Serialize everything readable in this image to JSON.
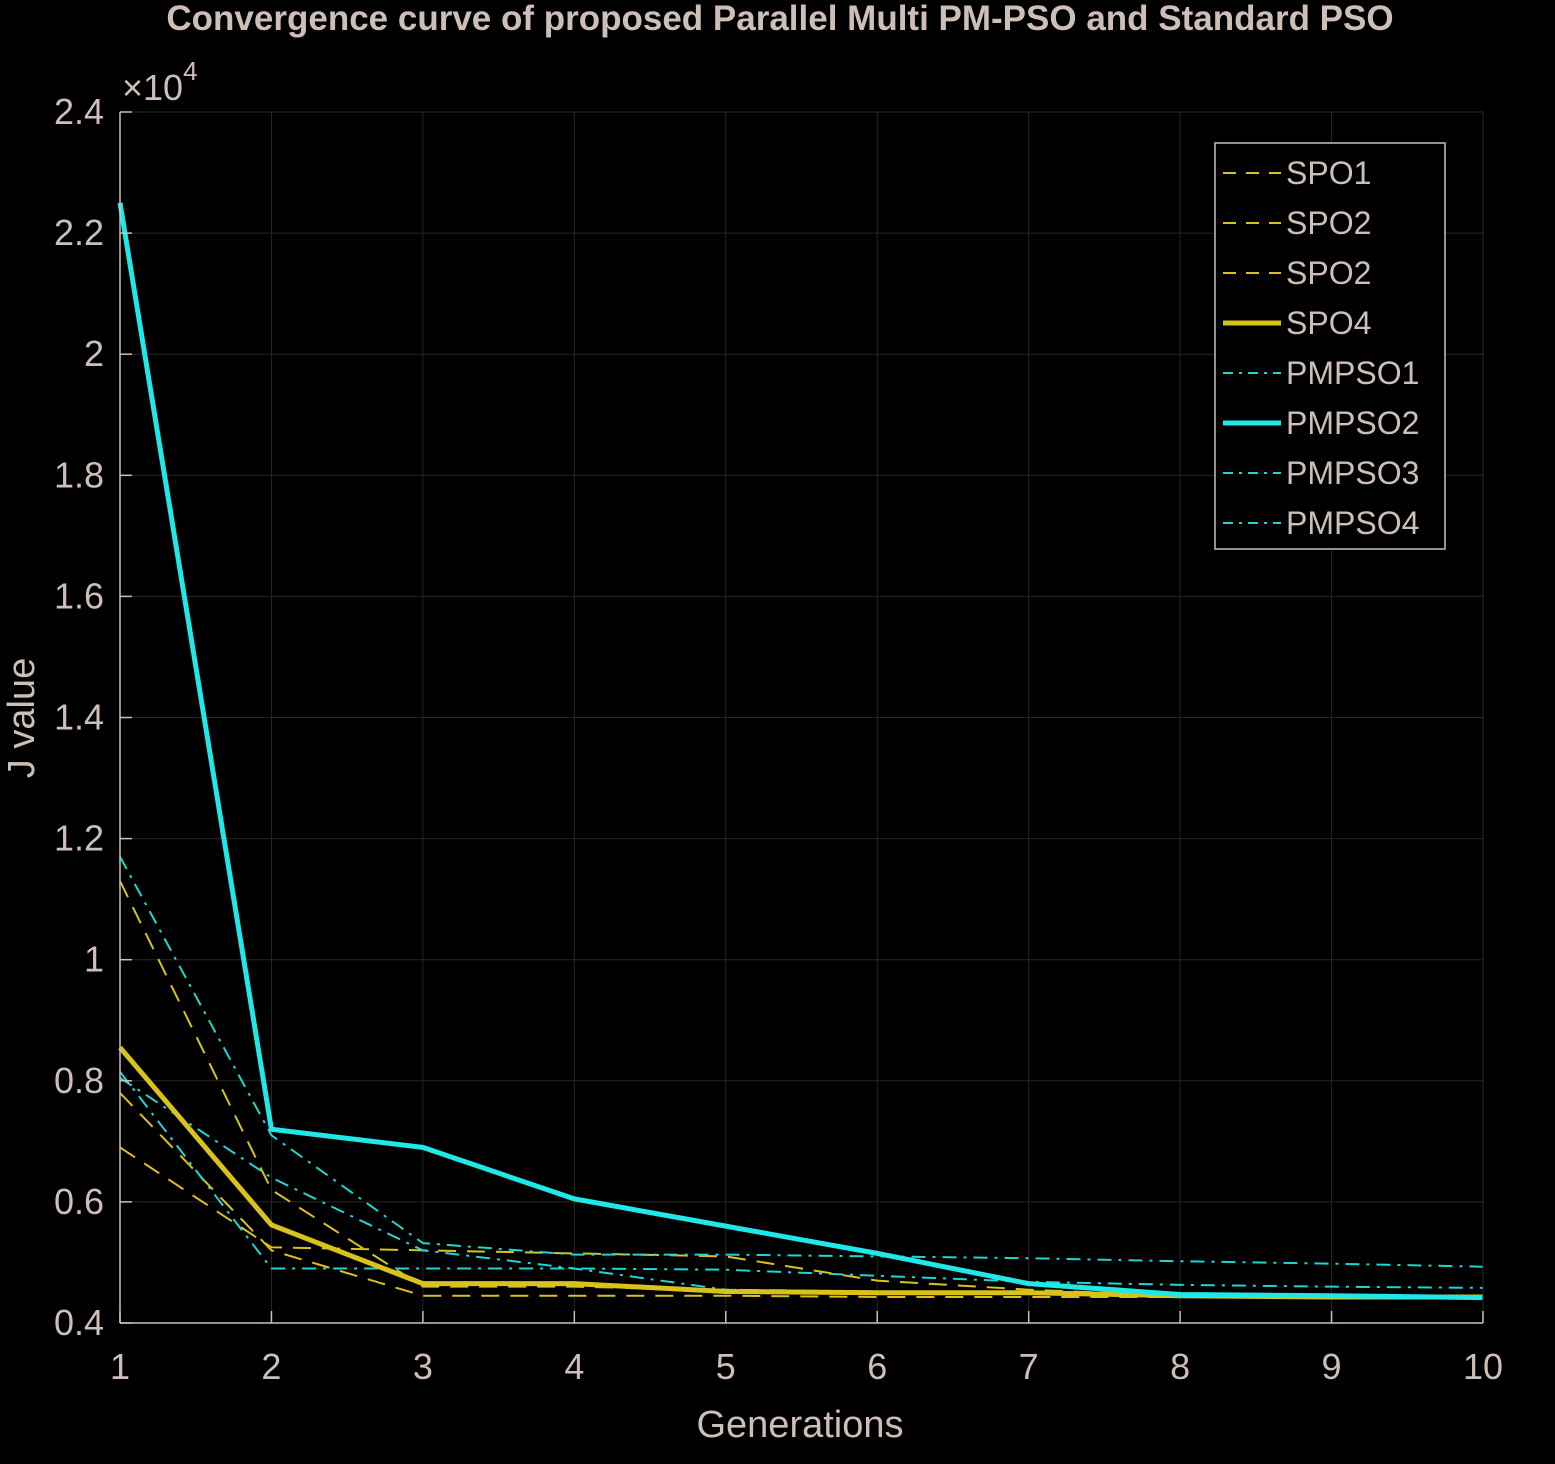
{
  "chart_data": {
    "type": "line",
    "title": "Convergence curve of proposed Parallel Multi PM-PSO and Standard PSO",
    "xlabel": "Generations",
    "ylabel": "J value",
    "y_exponent_label": "×10",
    "y_exponent_power": "4",
    "xlim": [
      1,
      10
    ],
    "ylim": [
      0.4,
      2.4
    ],
    "x_ticks": [
      1,
      2,
      3,
      4,
      5,
      6,
      7,
      8,
      9,
      10
    ],
    "x_tick_labels": [
      "1",
      "2",
      "3",
      "4",
      "5",
      "6",
      "7",
      "8",
      "9",
      "10"
    ],
    "y_ticks": [
      0.4,
      0.6,
      0.8,
      1.0,
      1.2,
      1.4,
      1.6,
      1.8,
      2.0,
      2.2,
      2.4
    ],
    "y_tick_labels": [
      "0.4",
      "0.6",
      "0.8",
      "1",
      "1.2",
      "1.4",
      "1.6",
      "1.8",
      "2",
      "2.2",
      "2.4"
    ],
    "grid": true,
    "legend_position": "top-right",
    "background": "#000000",
    "x": [
      1,
      2,
      3,
      4,
      5,
      6,
      7,
      8,
      9,
      10
    ],
    "series": [
      {
        "name": "SPO1",
        "color": "#d9c21a",
        "style": "dashed",
        "width": 2,
        "values": [
          0.69,
          0.525,
          0.52,
          0.515,
          0.51,
          0.47,
          0.455,
          0.445,
          0.443,
          0.443
        ]
      },
      {
        "name": "SPO2",
        "color": "#d9c21a",
        "style": "dashed",
        "width": 2,
        "values": [
          1.13,
          0.62,
          0.46,
          0.46,
          0.455,
          0.452,
          0.45,
          0.445,
          0.443,
          0.443
        ]
      },
      {
        "name": "SPO2",
        "color": "#d9c21a",
        "style": "dashed",
        "width": 2,
        "values": [
          0.78,
          0.52,
          0.445,
          0.445,
          0.445,
          0.443,
          0.443,
          0.443,
          0.443,
          0.443
        ]
      },
      {
        "name": "SPO4",
        "color": "#d9c21a",
        "style": "solid",
        "width": 5,
        "values": [
          0.855,
          0.562,
          0.465,
          0.465,
          0.452,
          0.45,
          0.45,
          0.445,
          0.443,
          0.443
        ]
      },
      {
        "name": "PMPSO1",
        "color": "#1ed6d3",
        "style": "dashdot",
        "width": 2,
        "values": [
          0.815,
          0.49,
          0.49,
          0.49,
          0.488,
          0.478,
          0.468,
          0.463,
          0.46,
          0.458
        ]
      },
      {
        "name": "PMPSO2",
        "color": "#1fe8e6",
        "style": "solid",
        "width": 5,
        "values": [
          2.25,
          0.72,
          0.69,
          0.605,
          0.56,
          0.515,
          0.465,
          0.447,
          0.445,
          0.442
        ]
      },
      {
        "name": "PMPSO3",
        "color": "#1ed6d3",
        "style": "dashdot",
        "width": 2,
        "values": [
          1.17,
          0.71,
          0.532,
          0.513,
          0.513,
          0.51,
          0.507,
          0.502,
          0.498,
          0.493
        ]
      },
      {
        "name": "PMPSO4",
        "color": "#1ed6d3",
        "style": "dashdot",
        "width": 2,
        "values": [
          0.805,
          0.64,
          0.52,
          0.49,
          0.455,
          0.45,
          0.45,
          0.445,
          0.443,
          0.443
        ]
      }
    ]
  }
}
